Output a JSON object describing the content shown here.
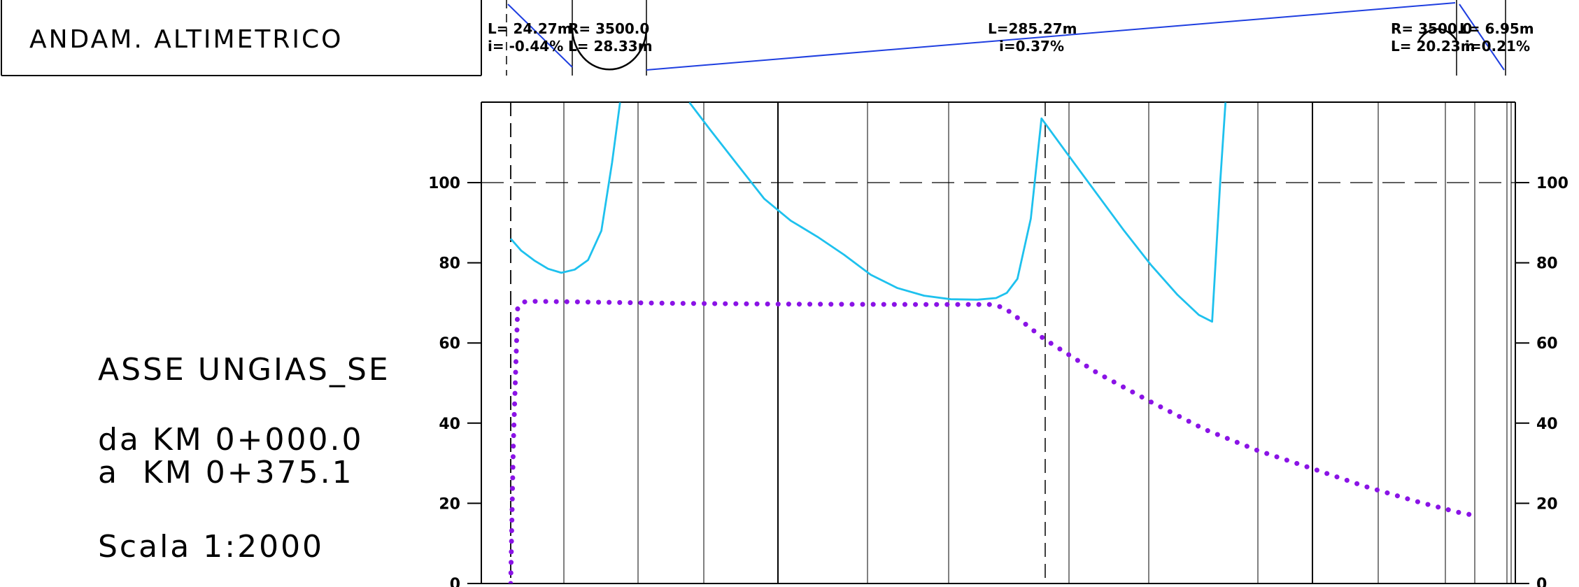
{
  "header": {
    "label": "ANDAM. ALTIMETRICO",
    "annotations": {
      "a_L": "L= 24.27m",
      "a_i": "i= -0.44%",
      "b_R": "R= 3500.0",
      "b_L": "L= 28.33m",
      "c_L": "L=285.27m",
      "c_i": "i=0.37%",
      "d_R": "R= 3500.0",
      "d_L": "L= 20.23m",
      "e_L": "L= 6.95m",
      "e_i": "i=0.21%"
    }
  },
  "info": {
    "asse": "ASSE UNGIAS_SE",
    "da": "da KM 0+000.0",
    "a": "a  KM 0+375.1",
    "scala": "Scala 1:2000"
  },
  "colors": {
    "terrain": "#1ec1ee",
    "project": "#8a13e6",
    "grade": "#1f3fe0",
    "grid": "#000000"
  },
  "chart_data": {
    "type": "line",
    "title": "",
    "xlabel": "",
    "ylabel": "",
    "xlim": [
      0,
      375.1
    ],
    "ylim": [
      0,
      120
    ],
    "y_ticks": [
      0,
      20,
      40,
      60,
      80,
      100
    ],
    "y_tick_labels": [
      "0",
      "20",
      "40",
      "60",
      "80",
      "100"
    ],
    "grid": true,
    "dashed_reference_y": 100,
    "series": [
      {
        "style": "solid",
        "color": "#1ec1ee",
        "points": [
          [
            0,
            86
          ],
          [
            4,
            83
          ],
          [
            9,
            80.5
          ],
          [
            14,
            78.5
          ],
          [
            19,
            77.5
          ],
          [
            24,
            78.3
          ],
          [
            29,
            80.7
          ],
          [
            34,
            88
          ],
          [
            38,
            105
          ],
          [
            41,
            120
          ],
          [
            null,
            null
          ],
          [
            67,
            120
          ],
          [
            75,
            113
          ],
          [
            85,
            104.5
          ],
          [
            95,
            96
          ],
          [
            105,
            90.5
          ],
          [
            115,
            86.5
          ],
          [
            125,
            82
          ],
          [
            135,
            77
          ],
          [
            145,
            73.7
          ],
          [
            155,
            71.8
          ],
          [
            165,
            70.9
          ],
          [
            175,
            70.8
          ],
          [
            182,
            71.2
          ],
          [
            186,
            72.5
          ],
          [
            190,
            76
          ],
          [
            195,
            91
          ],
          [
            199,
            116
          ],
          [
            210,
            106
          ],
          [
            220,
            97
          ],
          [
            230,
            88
          ],
          [
            240,
            79.5
          ],
          [
            250,
            72
          ],
          [
            258,
            67
          ],
          [
            263,
            65.3
          ],
          [
            264,
            77
          ],
          [
            266,
            100
          ],
          [
            268,
            120
          ]
        ]
      },
      {
        "style": "dotted",
        "color": "#8a13e6",
        "points": [
          [
            0,
            0
          ],
          [
            1,
            35
          ],
          [
            2.6,
            68.5
          ],
          [
            4,
            70
          ],
          [
            6,
            70.4
          ],
          [
            20,
            70.3
          ],
          [
            60,
            69.9
          ],
          [
            100,
            69.7
          ],
          [
            150,
            69.6
          ],
          [
            180,
            69.6
          ],
          [
            185,
            68.8
          ],
          [
            190,
            66.3
          ],
          [
            200,
            61
          ],
          [
            220,
            52.5
          ],
          [
            240,
            45.3
          ],
          [
            260,
            38.5
          ],
          [
            280,
            33.2
          ],
          [
            300,
            28.8
          ],
          [
            320,
            24.3
          ],
          [
            340,
            20.4
          ],
          [
            355,
            17.8
          ],
          [
            362,
            16.9
          ]
        ]
      }
    ]
  }
}
